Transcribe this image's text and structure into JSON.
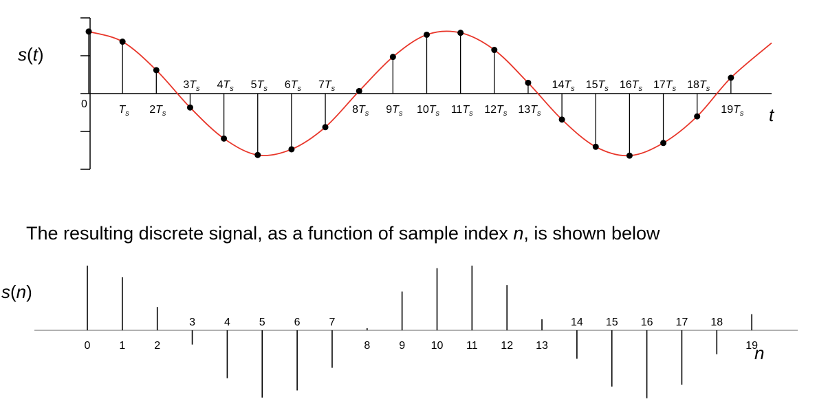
{
  "chart_data": [
    {
      "type": "line",
      "ylabel": "s(t)",
      "xlabel": "t",
      "origin_label": "0",
      "sample_symbol": "T",
      "sample_subscript": "s",
      "curve_color": "#e8362a",
      "marker_color": "#000000",
      "series": [
        {
          "sample_index": [
            0,
            1,
            2,
            3,
            4,
            5,
            6,
            7,
            8,
            9,
            10,
            11,
            12,
            13,
            14,
            15,
            16,
            17,
            18,
            19
          ],
          "values": [
            0.98,
            0.82,
            0.37,
            -0.22,
            -0.71,
            -0.97,
            -0.88,
            -0.53,
            0.04,
            0.58,
            0.93,
            0.96,
            0.69,
            0.17,
            -0.41,
            -0.84,
            -0.98,
            -0.78,
            -0.36,
            0.25
          ]
        }
      ]
    },
    {
      "type": "stem",
      "caption_before": "The resulting discrete signal, as a function of sample index ",
      "caption_var": "n",
      "caption_after": ", is shown below",
      "ylabel": "s(n)",
      "xlabel": "n",
      "categories": [
        "0",
        "1",
        "2",
        "3",
        "4",
        "5",
        "6",
        "7",
        "8",
        "9",
        "10",
        "11",
        "12",
        "13",
        "14",
        "15",
        "16",
        "17",
        "18",
        "19"
      ],
      "values": [
        1.0,
        0.82,
        0.36,
        -0.22,
        -0.74,
        -1.04,
        -0.93,
        -0.58,
        0.02,
        0.6,
        0.96,
        1.0,
        0.7,
        0.17,
        -0.44,
        -0.87,
        -1.05,
        -0.84,
        -0.37,
        0.25
      ]
    }
  ]
}
